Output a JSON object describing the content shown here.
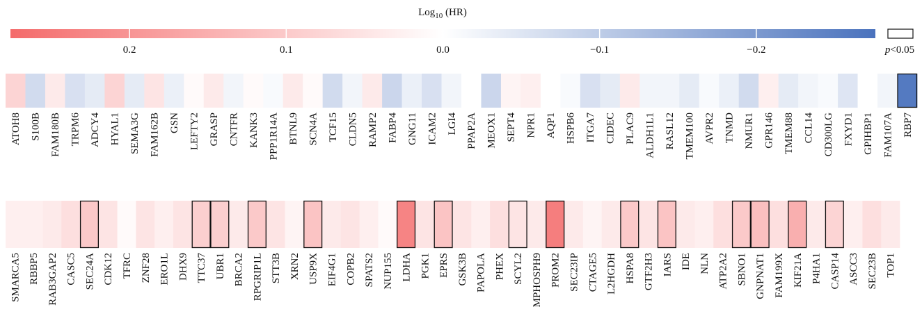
{
  "chart_data": {
    "type": "heatmap",
    "title": {
      "base": "Log",
      "sub": "10",
      "rest": " (HR)"
    },
    "clim": [
      0.276,
      -0.276
    ],
    "cticks": [
      0.2,
      0.1,
      {
        "value": 0,
        "label": "0.0"
      },
      {
        "value": -0.1,
        "label": "−0.1"
      },
      {
        "value": -0.2,
        "label": "−0.2"
      }
    ],
    "colors": {
      "positive": "#f46b6b",
      "zero": "#ffffff",
      "negative": "#4a72bd"
    },
    "significance_label": {
      "italic": "p",
      "rest": "<0.05"
    },
    "rows": [
      {
        "genes": [
          "ATOH8",
          "S100B",
          "FAM180B",
          "TRPM6",
          "ADCY4",
          "HYAL1",
          "SEMA3G",
          "FAM162B",
          "GSN",
          "LEFTY2",
          "GRASP",
          "CNTFR",
          "KANK3",
          "PPP1R14A",
          "BTNL9",
          "SCN4A",
          "TCF15",
          "CLDN5",
          "RAMP2",
          "FABP4",
          "GNG11",
          "ICAM2",
          "LGI4",
          "PPAP2A",
          "MEOX1",
          "SEPT4",
          "NPR1",
          "AQP1",
          "HSPB6",
          "ITGA7",
          "CIDEC",
          "PLAC9",
          "ALDH1L1",
          "RASL12",
          "TMEM100",
          "AVPR2",
          "TNMD",
          "NMUR1",
          "GPR146",
          "TMEM88",
          "CCL14",
          "CD300LG",
          "FXYD1",
          "GPIHBP1",
          "FAM107A",
          "RBP7"
        ],
        "values": [
          0.08,
          -0.07,
          0.04,
          -0.06,
          -0.04,
          0.08,
          -0.04,
          0.05,
          -0.03,
          0.01,
          0.04,
          -0.02,
          0.01,
          -0.01,
          0.04,
          0.01,
          -0.07,
          -0.02,
          0.04,
          -0.08,
          -0.03,
          -0.06,
          -0.02,
          0,
          -0.08,
          0.02,
          0.03,
          0,
          -0.01,
          -0.06,
          -0.04,
          0.04,
          -0.02,
          -0.02,
          -0.04,
          -0.01,
          -0.03,
          -0.07,
          0.03,
          -0.04,
          -0.02,
          -0.01,
          -0.05,
          0,
          -0.02,
          -0.26
        ],
        "significant": [
          false,
          false,
          false,
          false,
          false,
          false,
          false,
          false,
          false,
          false,
          false,
          false,
          false,
          false,
          false,
          false,
          false,
          false,
          false,
          false,
          false,
          false,
          false,
          false,
          false,
          false,
          false,
          false,
          false,
          false,
          false,
          false,
          false,
          false,
          false,
          false,
          false,
          false,
          false,
          false,
          false,
          false,
          false,
          false,
          false,
          true
        ]
      },
      {
        "genes": [
          "SMARCA5",
          "RBBP5",
          "RAB3GAP2",
          "CASC5",
          "SEC24A",
          "CDK12",
          "TFRC",
          "ZNF28",
          "ERO1L",
          "DHX9",
          "TTC37",
          "UBR1",
          "BRCA2",
          "RPGRIP1L",
          "STT3B",
          "XRN2",
          "USP9X",
          "EIF4G1",
          "COPB2",
          "SPATS2",
          "NUP155",
          "LDHA",
          "PGK1",
          "EPRS",
          "GSK3B",
          "PAPOLA",
          "PHEX",
          "SCYL2",
          "MPHOSPH9",
          "PROM2",
          "SEC23IP",
          "CTAGE5",
          "L2HGDH",
          "HSPA8",
          "GTF2H3",
          "IARS",
          "IDE",
          "NLN",
          "ATP2A2",
          "SBNO1",
          "GNPNAT1",
          "FAM199X",
          "KIF21A",
          "P4HA1",
          "CASP14",
          "ASCC3",
          "SEC23B",
          "TOP1"
        ],
        "values": [
          0.03,
          0.03,
          0.04,
          0.06,
          0.1,
          0.05,
          0.01,
          0.05,
          0.03,
          0.05,
          0.09,
          0.09,
          0.04,
          0.1,
          0.05,
          0.02,
          0.11,
          0.04,
          0.05,
          0.03,
          0.01,
          0.23,
          0.05,
          0.11,
          0.05,
          0.03,
          0.06,
          0.05,
          0.04,
          0.24,
          0.04,
          0.02,
          0.04,
          0.1,
          0.05,
          0.11,
          0.04,
          0.03,
          0.06,
          0.1,
          0.12,
          0.06,
          0.15,
          0.04,
          0.08,
          0.03,
          0.06,
          0.04
        ],
        "significant": [
          false,
          false,
          false,
          false,
          true,
          false,
          false,
          false,
          false,
          false,
          true,
          true,
          false,
          true,
          false,
          false,
          true,
          false,
          false,
          false,
          false,
          true,
          false,
          true,
          false,
          false,
          false,
          true,
          false,
          true,
          false,
          false,
          false,
          true,
          false,
          true,
          false,
          false,
          false,
          true,
          true,
          false,
          true,
          false,
          true,
          false,
          false,
          false
        ]
      }
    ]
  }
}
